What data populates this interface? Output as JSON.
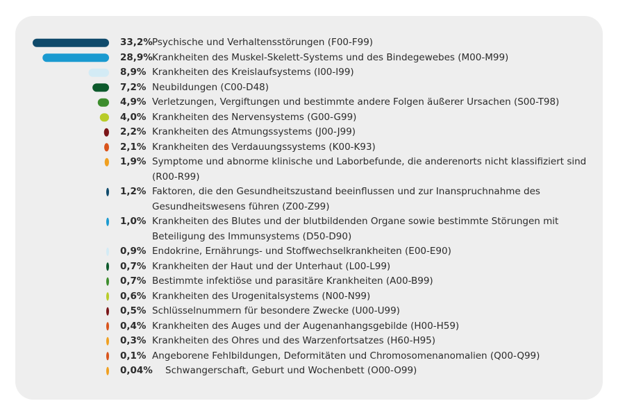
{
  "colors": {
    "panel": "#eeeeee",
    "text": "#2b2b2b",
    "palette": [
      "#0f4a6b",
      "#1a9ad0",
      "#d3ebf5",
      "#0d5a2c",
      "#3d8d2d",
      "#b8cc28",
      "#7a1518",
      "#d9541c",
      "#f0a020"
    ]
  },
  "chart_data": {
    "type": "bar",
    "orientation": "horizontal",
    "unit": "%",
    "categories": [
      "Psychische und Verhaltensstörungen (F00-F99)",
      "Krankheiten des Muskel-Skelett-Systems und des Bindegewebes (M00-M99)",
      "Krankheiten des Kreislaufsystems (I00-I99)",
      "Neubildungen (C00-D48)",
      "Verletzungen, Vergiftungen und bestimmte andere Folgen äußerer Ursachen (S00-T98)",
      "Krankheiten des Nervensystems (G00-G99)",
      "Krankheiten des Atmungssystems (J00-J99)",
      "Krankheiten des Verdauungssystems (K00-K93)",
      "Symptome und abnorme klinische und Laborbefunde, die anderenorts nicht klassifiziert sind (R00-R99)",
      "Faktoren, die den Gesundheitszustand beeinflussen und zur Inanspruchnahme des Gesundheitswesens führen (Z00-Z99)",
      "Krankheiten des Blutes und der blutbildenden Organe sowie bestimmte Störungen mit Beteiligung des Immunsystems (D50-D90)",
      "Endokrine, Ernährungs- und Stoffwechselkrankheiten (E00-E90)",
      "Krankheiten der Haut und der Unterhaut (L00-L99)",
      "Bestimmte infektiöse und parasitäre Krankheiten (A00-B99)",
      "Krankheiten des Urogenitalsystems (N00-N99)",
      "Schlüsselnummern für besondere Zwecke (U00-U99)",
      "Krankheiten des Auges und der Augenanhangsgebilde (H00-H59)",
      "Krankheiten des Ohres und des Warzenfortsatzes (H60-H95)",
      "Angeborene Fehlbildungen, Deformitäten und Chromosomenanomalien (Q00-Q99)",
      "Schwangerschaft, Geburt und Wochenbett (O00-O99)"
    ],
    "values": [
      33.2,
      28.9,
      8.9,
      7.2,
      4.9,
      4.0,
      2.2,
      2.1,
      1.9,
      1.2,
      1.0,
      0.9,
      0.7,
      0.7,
      0.6,
      0.5,
      0.4,
      0.3,
      0.1,
      0.04
    ],
    "value_labels": [
      "33,2%",
      "28,9%",
      "8,9%",
      "7,2%",
      "4,9%",
      "4,0%",
      "2,2%",
      "2,1%",
      "1,9%",
      "1,2%",
      "1,0%",
      "0,9%",
      "0,7%",
      "0,7%",
      "0,6%",
      "0,5%",
      "0,4%",
      "0,3%",
      "0,1%",
      "0,04%"
    ],
    "colors": [
      "#0f4a6b",
      "#1a9ad0",
      "#d3ebf5",
      "#0d5a2c",
      "#3d8d2d",
      "#b8cc28",
      "#7a1518",
      "#d9541c",
      "#f0a020",
      "#0f4a6b",
      "#1a9ad0",
      "#d3ebf5",
      "#0d5a2c",
      "#3d8d2d",
      "#b8cc28",
      "#7a1518",
      "#d9541c",
      "#f0a020",
      "#d9541c",
      "#f0a020"
    ],
    "legend": "none",
    "grid": false
  }
}
